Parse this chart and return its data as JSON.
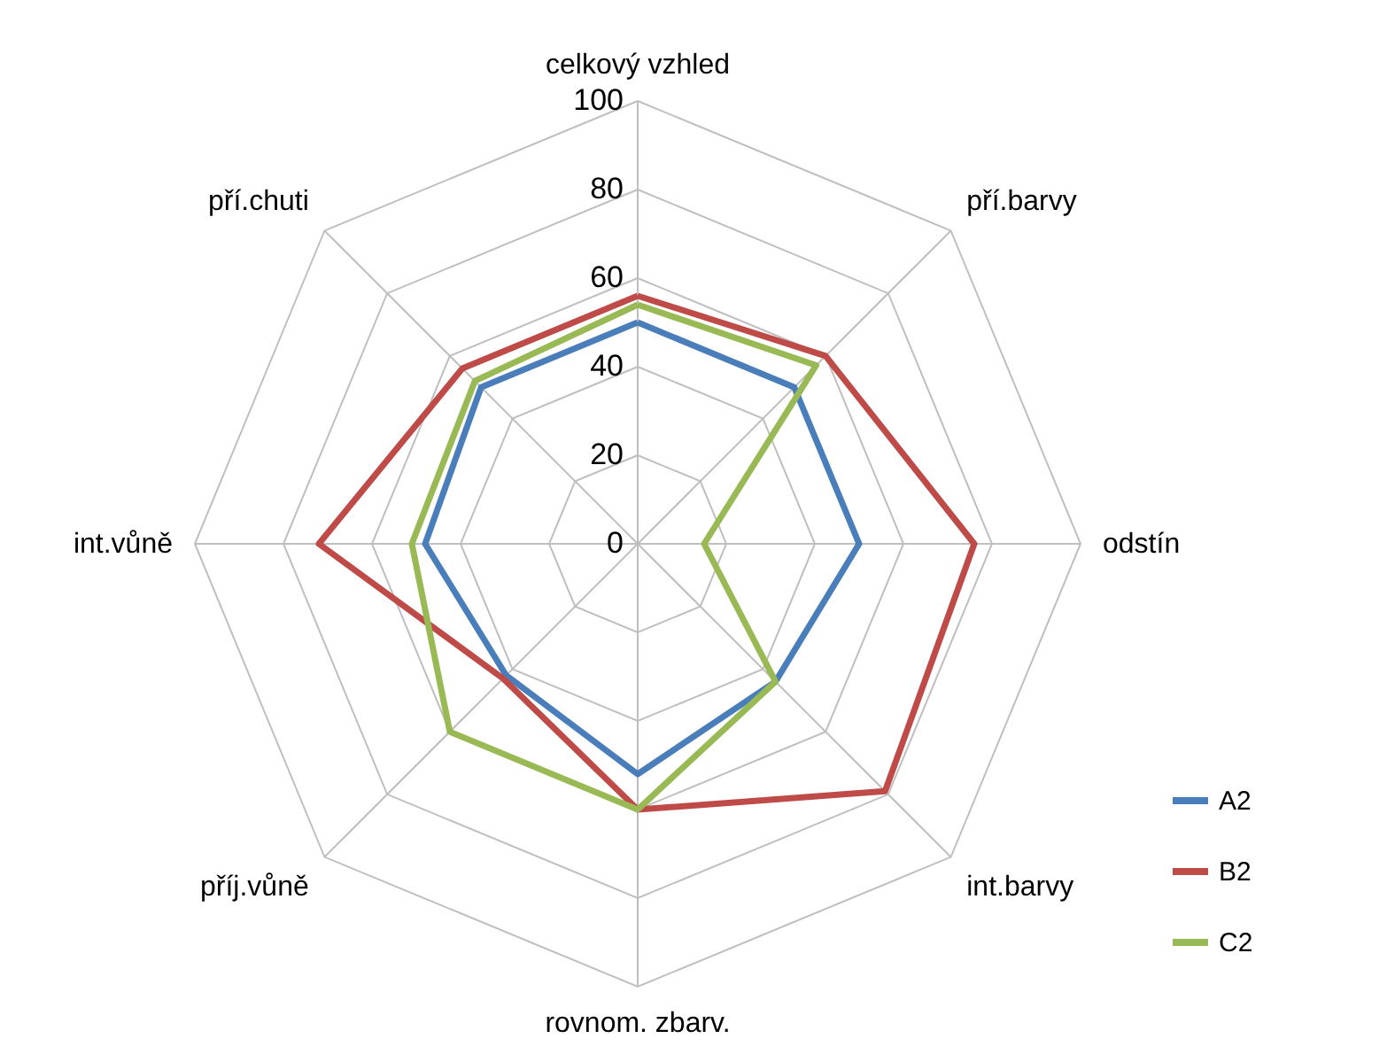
{
  "chart_data": {
    "type": "radar",
    "categories": [
      "celkový vzhled",
      "pří.barvy",
      "odstín",
      "int.barvy",
      "rovnom. zbarv.",
      "příj.vůně",
      "int.vůně",
      "pří.chuti"
    ],
    "series": [
      {
        "name": "A2",
        "color": "#4a7ebb",
        "values": [
          50,
          50,
          50,
          44,
          52,
          42,
          48,
          50
        ]
      },
      {
        "name": "B2",
        "color": "#be4b48",
        "values": [
          56,
          60,
          76,
          79,
          60,
          43,
          72,
          56
        ]
      },
      {
        "name": "C2",
        "color": "#98b954",
        "values": [
          54,
          57,
          15,
          44,
          60,
          60,
          51,
          52
        ]
      }
    ],
    "ylim": [
      0,
      100
    ],
    "yticks": [
      0,
      20,
      40,
      60,
      80,
      100
    ],
    "grid": true,
    "legend": "bottom right",
    "marker": "none"
  }
}
